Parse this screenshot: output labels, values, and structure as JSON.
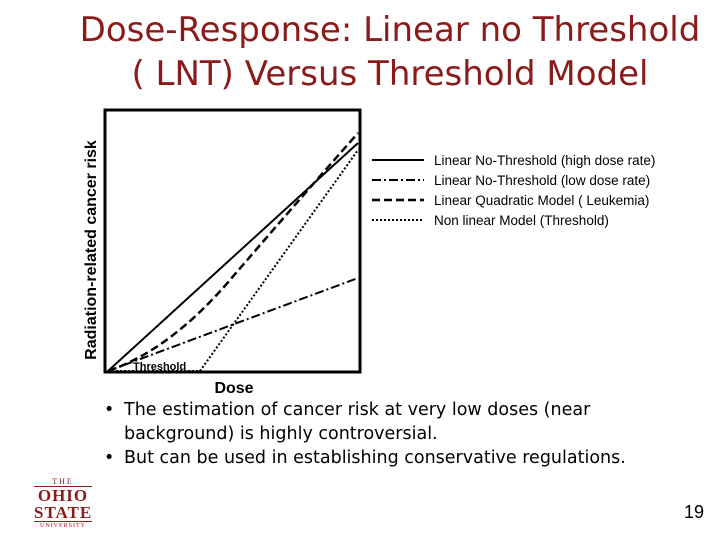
{
  "slide": {
    "title_line1": "Dose-Response: Linear no Threshold",
    "title_line2": "( LNT) Versus Threshold Model",
    "page_number": "19",
    "logo_text": [
      "THE",
      "OHIO",
      "STATE",
      "UNIVERSITY"
    ],
    "bullets": [
      "The estimation of cancer risk at very low doses (near background) is highly controversial.",
      "But can be used in establishing conservative regulations."
    ]
  },
  "diagram": {
    "y_axis_label": "Radiation-related cancer risk",
    "x_axis_label": "Dose",
    "threshold_label": "Threshold",
    "legend": [
      {
        "label": "Linear No-Threshold (high dose rate)",
        "style": "solid"
      },
      {
        "label": "Linear No-Threshold (low dose rate)",
        "style": "dash-dot"
      },
      {
        "label": "Linear Quadratic Model ( Leukemia)",
        "style": "dashed"
      },
      {
        "label": "Non linear Model (Threshold)",
        "style": "dotted"
      }
    ],
    "colors": {
      "title": "#8b1a1a",
      "lines": "#000000"
    }
  }
}
